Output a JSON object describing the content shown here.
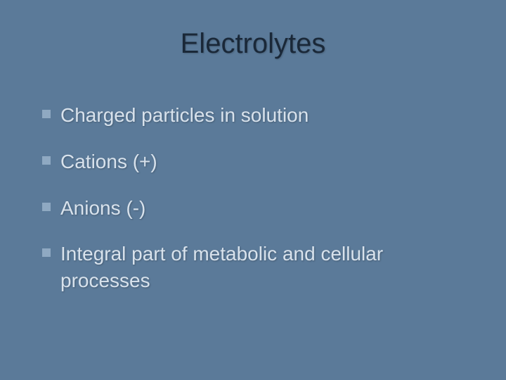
{
  "slide": {
    "title": "Electrolytes",
    "bullets": [
      "Charged particles in solution",
      "Cations (+)",
      "Anions (-)",
      "Integral part of metabolic and cellular processes"
    ]
  },
  "style": {
    "background_color": "#5b7a99",
    "title_color": "#1a2838",
    "title_fontsize": 40,
    "text_color": "#d8e2ec",
    "text_fontsize": 28,
    "bullet_marker_color": "#8fa9c2",
    "font_family": "Verdana, Geneva, sans-serif"
  }
}
